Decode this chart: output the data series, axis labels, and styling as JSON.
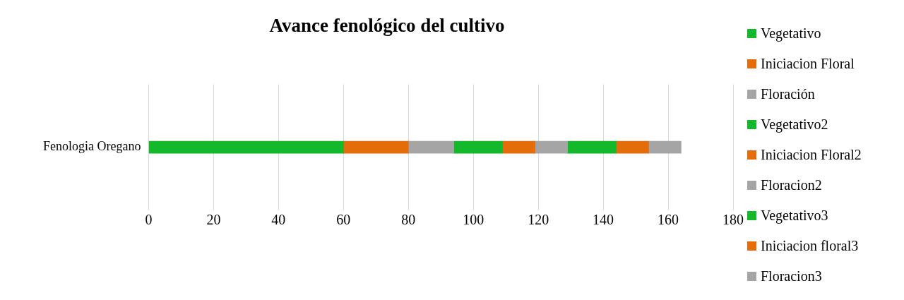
{
  "chart_data": {
    "type": "bar",
    "orientation": "horizontal",
    "stacked": true,
    "title": "Avance fenológico del cultivo",
    "categories": [
      "Fenologia Oregano"
    ],
    "series": [
      {
        "name": "Vegetativo",
        "color": "#13b82b",
        "values": [
          60
        ]
      },
      {
        "name": "Iniciacion Floral",
        "color": "#e46c0a",
        "values": [
          20
        ]
      },
      {
        "name": "Floración",
        "color": "#a5a5a5",
        "values": [
          14
        ]
      },
      {
        "name": "Vegetativo2",
        "color": "#13b82b",
        "values": [
          15
        ]
      },
      {
        "name": "Iniciacion Floral2",
        "color": "#e46c0a",
        "values": [
          10
        ]
      },
      {
        "name": "Floracion2",
        "color": "#a5a5a5",
        "values": [
          10
        ]
      },
      {
        "name": "Vegetativo3",
        "color": "#13b82b",
        "values": [
          15
        ]
      },
      {
        "name": "Iniciacion floral3",
        "color": "#e46c0a",
        "values": [
          10
        ]
      },
      {
        "name": "Floracion3",
        "color": "#a5a5a5",
        "values": [
          10
        ]
      }
    ],
    "xlim": [
      0,
      180
    ],
    "xticks": [
      0,
      20,
      40,
      60,
      80,
      100,
      120,
      140,
      160,
      180
    ],
    "grid": "x",
    "legend": "right"
  }
}
